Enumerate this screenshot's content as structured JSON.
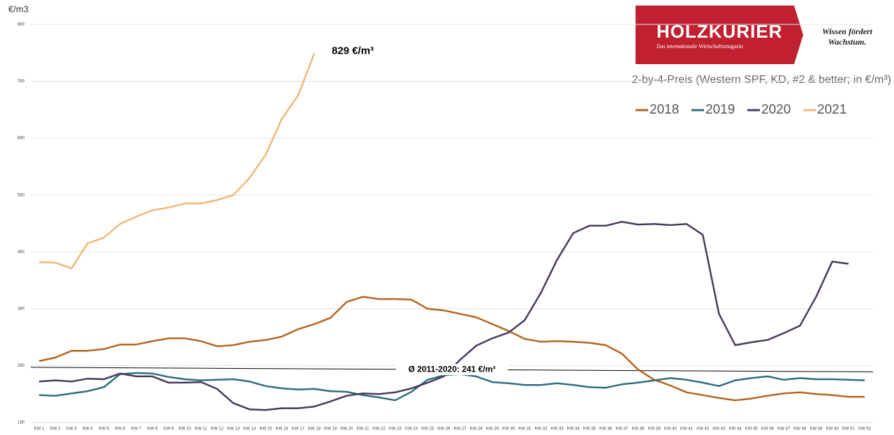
{
  "chart_data": {
    "type": "line",
    "y_label": "€/m3",
    "subtitle": "2-by-4-Preis (Western SPF, KD, #2 & better; in €/m³)",
    "logo": {
      "name": "HOLZKURIER",
      "tagline_small": "Das internationale Wirtschaftsmagazin",
      "slogan": "Wissen fördert Wachstum."
    },
    "annotation": {
      "label": "829 €/m³",
      "series": 3,
      "index": 17
    },
    "average": {
      "label": "Ø 2011-2020: 241 €/m³",
      "values": [
        277,
        269
      ]
    },
    "categories": [
      "KW 1",
      "KW 2",
      "KW 3",
      "KW 4",
      "KW 5",
      "KW 6",
      "KW 7",
      "KW 8",
      "KW 9",
      "KW 10",
      "KW 11",
      "KW 12",
      "KW 13",
      "KW 14",
      "KW 15",
      "KW 16",
      "KW 17",
      "KW 18",
      "KW 19",
      "KW 20",
      "KW 21",
      "KW 22",
      "KW 23",
      "KW 24",
      "KW 25",
      "KW 26",
      "KW 27",
      "KW 28",
      "KW 29",
      "KW 30",
      "KW 31",
      "KW 32",
      "KW 33",
      "KW 34",
      "KW 35",
      "KW 36",
      "KW 37",
      "KW 38",
      "KW 39",
      "KW 40",
      "KW 41",
      "KW 42",
      "KW 43",
      "KW 44",
      "KW 45",
      "KW 46",
      "KW 47",
      "KW 48",
      "KW 49",
      "KW 50",
      "KW 51",
      "KW 52"
    ],
    "series": [
      {
        "name": "2018",
        "color": "#b5651d",
        "values": [
          288,
          294,
          306,
          306,
          309,
          317,
          317,
          323,
          328,
          328,
          323,
          314,
          316,
          322,
          325,
          331,
          344,
          353,
          364,
          392,
          401,
          397,
          397,
          396,
          380,
          377,
          371,
          365,
          353,
          341,
          327,
          322,
          323,
          322,
          320,
          316,
          301,
          273,
          255,
          245,
          233,
          228,
          223,
          219,
          222,
          227,
          231,
          233,
          230,
          228,
          225,
          225
        ]
      },
      {
        "name": "2019",
        "color": "#2e6e7e",
        "values": [
          228,
          227,
          231,
          235,
          242,
          265,
          267,
          266,
          260,
          256,
          254,
          255,
          256,
          252,
          244,
          240,
          238,
          239,
          235,
          234,
          228,
          224,
          219,
          234,
          255,
          263,
          265,
          261,
          251,
          249,
          246,
          246,
          249,
          246,
          242,
          241,
          247,
          250,
          254,
          258,
          255,
          250,
          244,
          254,
          258,
          261,
          255,
          258,
          256,
          256,
          255,
          254
        ]
      },
      {
        "name": "2020",
        "color": "#4a3a5c",
        "values": [
          252,
          254,
          252,
          257,
          256,
          266,
          261,
          261,
          250,
          250,
          251,
          239,
          214,
          203,
          202,
          205,
          205,
          208,
          217,
          227,
          231,
          230,
          233,
          240,
          250,
          261,
          290,
          315,
          328,
          338,
          360,
          408,
          466,
          513,
          526,
          526,
          533,
          528,
          529,
          527,
          529,
          510,
          371,
          316,
          321,
          325,
          337,
          350,
          401,
          463,
          459,
          null
        ]
      },
      {
        "name": "2021",
        "color": "#f0b878",
        "values": [
          462,
          461,
          451,
          495,
          505,
          529,
          542,
          553,
          558,
          565,
          565,
          571,
          580,
          610,
          651,
          714,
          755,
          829,
          null,
          null,
          null,
          null,
          null,
          null,
          null,
          null,
          null,
          null,
          null,
          null,
          null,
          null,
          null,
          null,
          null,
          null,
          null,
          null,
          null,
          null,
          null,
          null,
          null,
          null,
          null,
          null,
          null,
          null,
          null,
          null,
          null,
          null
        ]
      }
    ],
    "ylim": [
      180,
      880
    ],
    "yticks": [
      180,
      280,
      380,
      480,
      580,
      680,
      780,
      880
    ],
    "grid": true,
    "legend": "top-right"
  }
}
